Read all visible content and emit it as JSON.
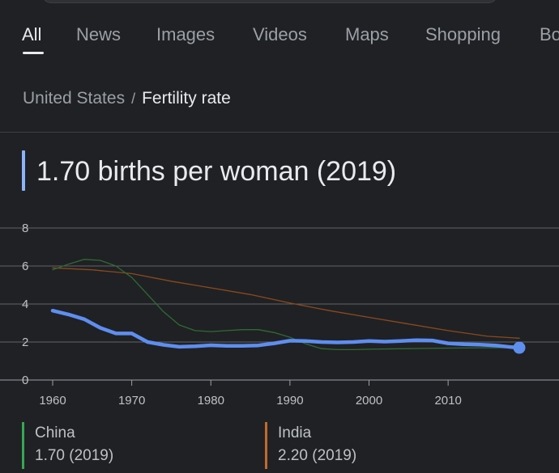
{
  "tabs": [
    {
      "label": "All",
      "active": true
    },
    {
      "label": "News",
      "active": false
    },
    {
      "label": "Images",
      "active": false
    },
    {
      "label": "Videos",
      "active": false
    },
    {
      "label": "Maps",
      "active": false
    },
    {
      "label": "Shopping",
      "active": false
    },
    {
      "label": "Bo",
      "active": false
    }
  ],
  "breadcrumb": {
    "parent": "United States",
    "separator": "/",
    "current": "Fertility rate"
  },
  "answer": "1.70 births per woman (2019)",
  "colors": {
    "us": "#5e8ef0",
    "china": "#2e6b35",
    "india": "#8a4a1e",
    "china_legend": "#34a853",
    "india_legend": "#c26a2b",
    "grid": "#5f6368"
  },
  "legend": [
    {
      "name": "China",
      "value": "1.70 (2019)",
      "color": "#34a853"
    },
    {
      "name": "India",
      "value": "2.20 (2019)",
      "color": "#c26a2b"
    }
  ],
  "chart_data": {
    "type": "line",
    "title": "",
    "xlabel": "",
    "ylabel": "",
    "xlim": [
      1960,
      2019
    ],
    "ylim": [
      0,
      8
    ],
    "x_ticks": [
      1960,
      1970,
      1980,
      1990,
      2000,
      2010
    ],
    "y_ticks": [
      0,
      2,
      4,
      6,
      8
    ],
    "grid": true,
    "series": [
      {
        "name": "United States",
        "color": "#5e8ef0",
        "x": [
          1960,
          1962,
          1964,
          1966,
          1968,
          1970,
          1972,
          1974,
          1976,
          1978,
          1980,
          1982,
          1984,
          1986,
          1988,
          1990,
          1992,
          1994,
          1996,
          1998,
          2000,
          2002,
          2004,
          2006,
          2008,
          2010,
          2012,
          2014,
          2016,
          2018,
          2019
        ],
        "y": [
          3.65,
          3.45,
          3.2,
          2.75,
          2.45,
          2.45,
          2.0,
          1.85,
          1.75,
          1.78,
          1.83,
          1.8,
          1.8,
          1.82,
          1.93,
          2.07,
          2.05,
          2.0,
          1.98,
          2.0,
          2.05,
          2.02,
          2.05,
          2.1,
          2.08,
          1.93,
          1.88,
          1.86,
          1.82,
          1.73,
          1.7
        ]
      },
      {
        "name": "China",
        "color": "#2e6b35",
        "x": [
          1960,
          1962,
          1964,
          1966,
          1968,
          1970,
          1972,
          1974,
          1976,
          1978,
          1980,
          1982,
          1984,
          1986,
          1988,
          1990,
          1992,
          1994,
          1996,
          1998,
          2000,
          2005,
          2010,
          2015,
          2019
        ],
        "y": [
          5.8,
          6.1,
          6.35,
          6.3,
          6.0,
          5.4,
          4.5,
          3.6,
          2.9,
          2.6,
          2.55,
          2.6,
          2.65,
          2.65,
          2.5,
          2.25,
          1.9,
          1.65,
          1.6,
          1.6,
          1.62,
          1.65,
          1.68,
          1.7,
          1.7
        ]
      },
      {
        "name": "India",
        "color": "#8a4a1e",
        "x": [
          1960,
          1965,
          1970,
          1975,
          1980,
          1985,
          1990,
          1995,
          2000,
          2005,
          2010,
          2015,
          2019
        ],
        "y": [
          5.9,
          5.8,
          5.6,
          5.2,
          4.85,
          4.5,
          4.05,
          3.65,
          3.3,
          2.95,
          2.6,
          2.3,
          2.2
        ]
      }
    ]
  }
}
